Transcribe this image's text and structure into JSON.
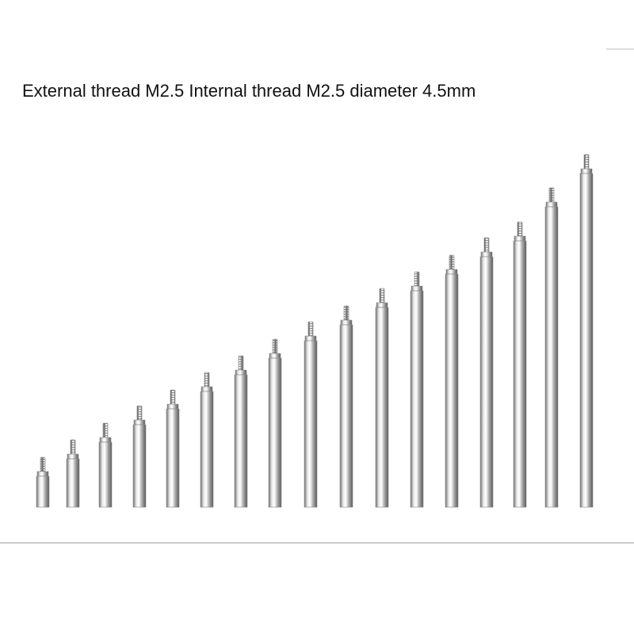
{
  "title": "External thread M2.5 Internal thread M2.5 diameter 4.5mm"
}
